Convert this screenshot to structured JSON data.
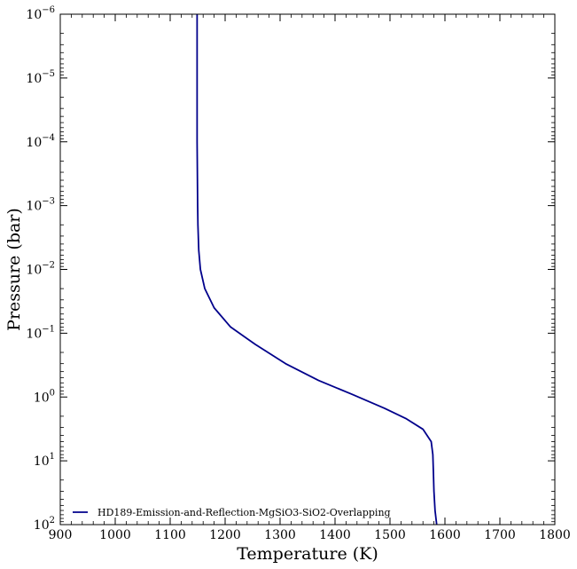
{
  "chart_data": {
    "type": "line",
    "xlabel": "Temperature (K)",
    "ylabel": "Pressure (bar)",
    "xlim": [
      900,
      1800
    ],
    "ylim": [
      100,
      1e-06
    ],
    "yscale": "log",
    "y_inverted": true,
    "grid": false,
    "legend_position": "lower-left",
    "x_ticks": [
      900,
      1000,
      1100,
      1200,
      1300,
      1400,
      1500,
      1600,
      1700,
      1800
    ],
    "x_tick_labels": [
      "900",
      "1000",
      "1100",
      "1200",
      "1300",
      "1400",
      "1500",
      "1600",
      "1700",
      "1800"
    ],
    "y_ticks": [
      {
        "value": 1e-06,
        "base": "10",
        "exp": "−6"
      },
      {
        "value": 1e-05,
        "base": "10",
        "exp": "−5"
      },
      {
        "value": 0.0001,
        "base": "10",
        "exp": "−4"
      },
      {
        "value": 0.001,
        "base": "10",
        "exp": "−3"
      },
      {
        "value": 0.01,
        "base": "10",
        "exp": "−2"
      },
      {
        "value": 0.1,
        "base": "10",
        "exp": "−1"
      },
      {
        "value": 1,
        "base": "10",
        "exp": "0"
      },
      {
        "value": 10,
        "base": "10",
        "exp": "1"
      },
      {
        "value": 100,
        "base": "10",
        "exp": "2"
      }
    ],
    "series": [
      {
        "name": "HD189-Emission-and-Reflection-MgSiO3-SiO2-Overlapping",
        "color": "#00008b",
        "points": [
          {
            "x": 1149,
            "y": 1e-06
          },
          {
            "x": 1149,
            "y": 0.0001
          },
          {
            "x": 1150,
            "y": 0.001
          },
          {
            "x": 1150.5,
            "y": 0.002
          },
          {
            "x": 1152,
            "y": 0.005
          },
          {
            "x": 1155,
            "y": 0.01
          },
          {
            "x": 1163,
            "y": 0.02
          },
          {
            "x": 1180,
            "y": 0.04
          },
          {
            "x": 1210,
            "y": 0.08
          },
          {
            "x": 1255,
            "y": 0.15
          },
          {
            "x": 1310,
            "y": 0.3
          },
          {
            "x": 1370,
            "y": 0.55
          },
          {
            "x": 1430,
            "y": 0.9
          },
          {
            "x": 1490,
            "y": 1.5
          },
          {
            "x": 1530,
            "y": 2.2
          },
          {
            "x": 1560,
            "y": 3.2
          },
          {
            "x": 1575,
            "y": 5
          },
          {
            "x": 1578,
            "y": 8
          },
          {
            "x": 1579,
            "y": 15
          },
          {
            "x": 1580,
            "y": 30
          },
          {
            "x": 1582,
            "y": 60
          },
          {
            "x": 1585,
            "y": 100
          }
        ]
      }
    ]
  }
}
